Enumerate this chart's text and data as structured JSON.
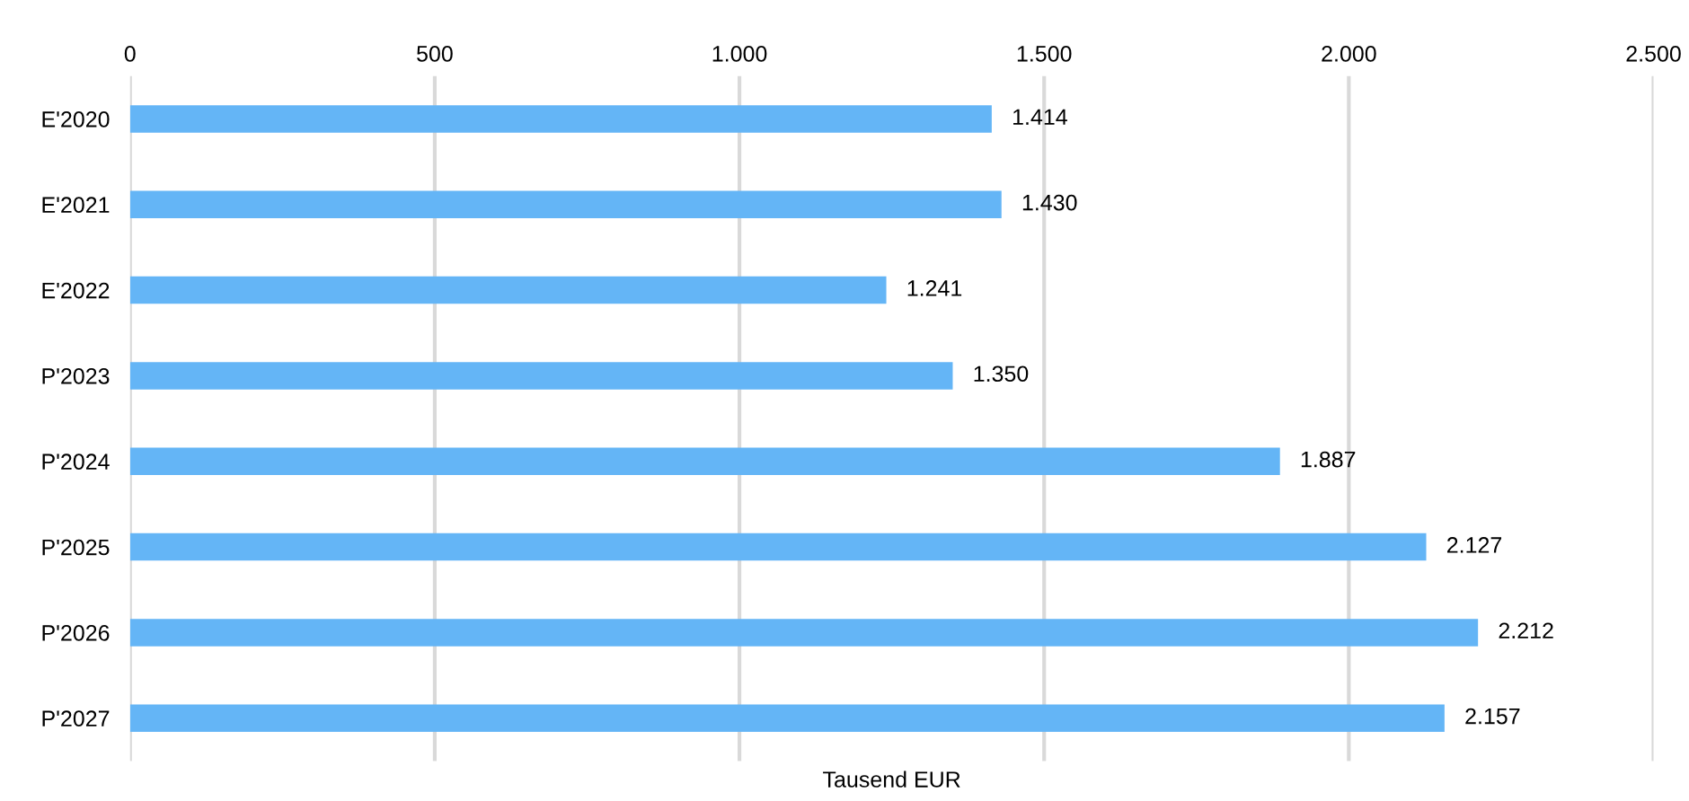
{
  "chart_data": {
    "type": "bar",
    "orientation": "horizontal",
    "xlabel": "Tausend EUR",
    "categories": [
      "E'2020",
      "E'2021",
      "E'2022",
      "P'2023",
      "P'2024",
      "P'2025",
      "P'2026",
      "P'2027"
    ],
    "values": [
      1414,
      1430,
      1241,
      1350,
      1887,
      2127,
      2212,
      2157
    ],
    "value_labels": [
      "1.414",
      "1.430",
      "1.241",
      "1.350",
      "1.887",
      "2.127",
      "2.212",
      "2.157"
    ],
    "color": "#64b5f6",
    "xlim": [
      0,
      2500
    ],
    "xticks": [
      0,
      {
        "value": 500,
        "label": "500"
      },
      {
        "value": 1000,
        "label": "1.000"
      },
      {
        "value": 1500,
        "label": "1.500"
      },
      {
        "value": 2000,
        "label": "2.000"
      },
      {
        "value": 2500,
        "label": "2.500"
      }
    ],
    "grid": "x"
  }
}
